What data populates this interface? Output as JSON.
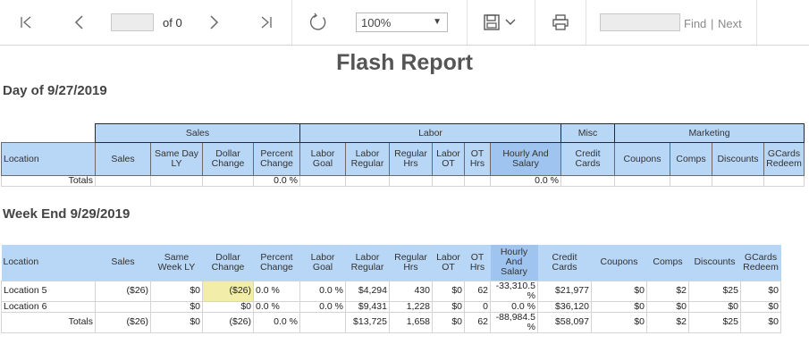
{
  "toolbar": {
    "page_value": "",
    "of_label": "of 0",
    "zoom": "100%",
    "find_value": "",
    "find_label": "Find",
    "next_label": "Next",
    "divider": "|"
  },
  "report": {
    "title": "Flash Report",
    "day_title": "Day of 9/27/2019",
    "week_title": "Week End 9/29/2019",
    "groups": {
      "sales": "Sales",
      "labor": "Labor",
      "misc": "Misc",
      "marketing": "Marketing"
    },
    "day_headers": [
      "Location",
      "Sales",
      "Same Day LY",
      "Dollar Change",
      "Percent Change",
      "Labor Goal",
      "Labor Regular",
      "Regular Hrs",
      "Labor OT",
      "OT Hrs",
      "Hourly And Salary",
      "Credit Cards",
      "Coupons",
      "Comps",
      "Discounts",
      "GCards Redeem"
    ],
    "day_totals": [
      "Totals",
      "",
      "",
      "",
      "0.0 %",
      "",
      "",
      "",
      "",
      "",
      "0.0 %",
      "",
      "",
      "",
      "",
      ""
    ],
    "week_headers": [
      "Location",
      "Sales",
      "Same Week LY",
      "Dollar Change",
      "Percent Change",
      "Labor Goal",
      "Labor Regular",
      "Regular Hrs",
      "Labor OT",
      "OT Hrs",
      "Hourly And Salary",
      "Credit Cards",
      "Coupons",
      "Comps",
      "Discounts",
      "GCards Redeem"
    ],
    "week_rows": [
      [
        "Location 5",
        "($26)",
        "$0",
        "($26)",
        "0.0 %",
        "0.0 %",
        "$4,294",
        "430",
        "$0",
        "62",
        "-33,310.5 %",
        "$21,977",
        "$0",
        "$2",
        "$25",
        "$0"
      ],
      [
        "Location 6",
        "",
        "$0",
        "$0",
        "0.0 %",
        "0.0 %",
        "$9,431",
        "1,228",
        "$0",
        "0",
        "0.0 %",
        "$36,120",
        "$0",
        "$0",
        "$0",
        "$0"
      ]
    ],
    "week_totals": [
      "Totals",
      "($26)",
      "$0",
      "($26)",
      "0.0 %",
      "",
      "$13,725",
      "1,658",
      "$0",
      "62",
      "-88,984.5 %",
      "$58,097",
      "$0",
      "$2",
      "$25",
      "$0"
    ]
  },
  "icons": {
    "first_page": "first-page-icon",
    "prev_page": "previous-page-icon",
    "next_page": "next-page-icon",
    "last_page": "last-page-icon",
    "refresh": "refresh-icon",
    "save": "save-icon",
    "print": "print-icon"
  }
}
